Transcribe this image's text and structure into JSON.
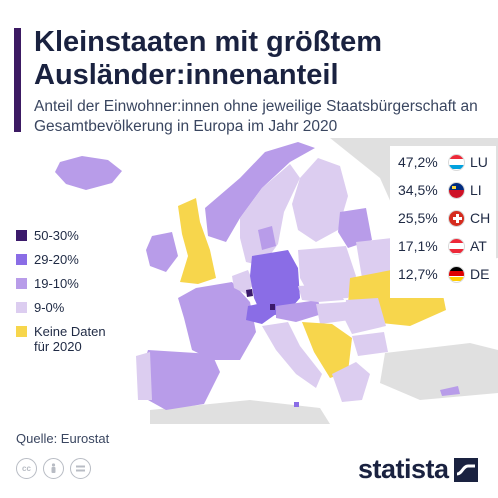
{
  "header": {
    "title": "Kleinstaaten mit größtem Ausländer:innenanteil",
    "subtitle": "Anteil der Einwohner:innen ohne jeweilige Staatsbürgerschaft an Gesamtbevölkerung in Europa im Jahr 2020"
  },
  "legend": [
    {
      "label": "50-30%",
      "color": "#3b1a6b"
    },
    {
      "label": "29-20%",
      "color": "#8a6de6"
    },
    {
      "label": "19-10%",
      "color": "#b89ce9"
    },
    {
      "label": "9-0%",
      "color": "#dccdf0"
    },
    {
      "label": "Keine Daten\nfür 2020",
      "color": "#f7d64c"
    }
  ],
  "chart_data": {
    "type": "table",
    "unit": "%",
    "rows": [
      {
        "value": "47,2%",
        "country": "LU",
        "number": 47.2
      },
      {
        "value": "34,5%",
        "country": "LI",
        "number": 34.5
      },
      {
        "value": "25,5%",
        "country": "CH",
        "number": 25.5
      },
      {
        "value": "17,1%",
        "country": "AT",
        "number": 17.1
      },
      {
        "value": "12,7%",
        "country": "DE",
        "number": 12.7
      }
    ]
  },
  "footer": {
    "source": "Quelle: Eurostat",
    "brand": "statista",
    "icons": [
      "cc-icon",
      "by-icon",
      "nd-icon"
    ]
  }
}
